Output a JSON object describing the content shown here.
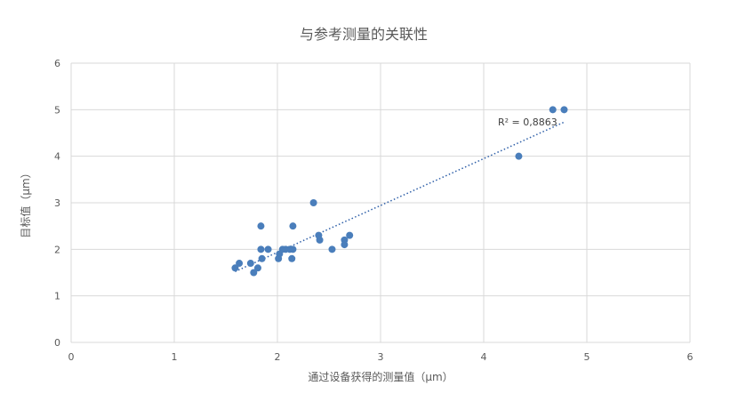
{
  "chart_data": {
    "type": "scatter",
    "title": "与参考测量的关联性",
    "xlabel": "通过设备获得的测量值（μm）",
    "ylabel": "目标值（μm）",
    "xlim": [
      0,
      6
    ],
    "ylim": [
      0,
      6
    ],
    "xticks": [
      0,
      1,
      2,
      3,
      4,
      5,
      6
    ],
    "yticks": [
      0,
      1,
      2,
      3,
      4,
      5,
      6
    ],
    "grid": true,
    "point_color": "#4a7ebb",
    "trendline_color": "#2e5fa8",
    "points": [
      [
        1.59,
        1.6
      ],
      [
        1.63,
        1.7
      ],
      [
        1.74,
        1.7
      ],
      [
        1.77,
        1.5
      ],
      [
        1.81,
        1.6
      ],
      [
        1.84,
        2.5
      ],
      [
        1.84,
        2.0
      ],
      [
        1.85,
        1.8
      ],
      [
        1.91,
        2.0
      ],
      [
        2.01,
        1.8
      ],
      [
        2.02,
        1.9
      ],
      [
        2.05,
        2.0
      ],
      [
        2.08,
        2.0
      ],
      [
        2.12,
        2.0
      ],
      [
        2.15,
        2.0
      ],
      [
        2.14,
        1.8
      ],
      [
        2.15,
        2.5
      ],
      [
        2.35,
        3.0
      ],
      [
        2.4,
        2.3
      ],
      [
        2.41,
        2.2
      ],
      [
        2.53,
        2.0
      ],
      [
        2.65,
        2.2
      ],
      [
        2.65,
        2.1
      ],
      [
        2.7,
        2.3
      ],
      [
        4.34,
        4.0
      ],
      [
        4.67,
        5.0
      ],
      [
        4.78,
        5.0
      ]
    ],
    "trendline": {
      "type": "linear",
      "x_range": [
        1.59,
        4.78
      ],
      "r_squared_label": "R² = 0,8863"
    }
  }
}
